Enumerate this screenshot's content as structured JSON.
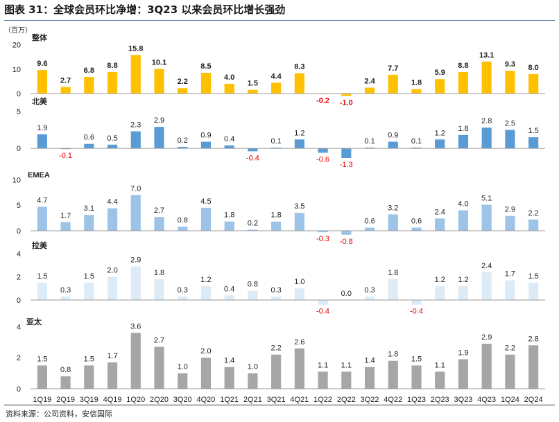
{
  "title": "图表 31：全球会员环比净增：3Q23 以来会员环比增长强劲",
  "source": "资料来源：公司资料，安信国际",
  "colors": {
    "negative_label": "#e00000",
    "title_rule": "#5b7fb0",
    "axis": "#999999"
  },
  "chart_data": [
    {
      "type": "bar",
      "label": "整体",
      "unit": "（百万）",
      "color": "#ffc000",
      "yticks": [
        0,
        10,
        20
      ],
      "ylim": [
        -2,
        23
      ],
      "categories": [
        "1Q19",
        "2Q19",
        "3Q19",
        "4Q19",
        "1Q20",
        "2Q20",
        "3Q20",
        "4Q20",
        "1Q21",
        "2Q21",
        "3Q21",
        "4Q21",
        "1Q22",
        "2Q22",
        "3Q22",
        "4Q22",
        "1Q23",
        "2Q23",
        "3Q23",
        "4Q23",
        "1Q24",
        "2Q24"
      ],
      "values": [
        9.6,
        2.7,
        6.8,
        8.8,
        15.8,
        10.1,
        2.2,
        8.5,
        4.0,
        1.5,
        4.4,
        8.3,
        -0.2,
        -1.0,
        2.4,
        7.7,
        1.8,
        5.9,
        8.8,
        13.1,
        9.3,
        8.0
      ],
      "data_labels": [
        "9.6",
        "2.7",
        "6.8",
        "8.8",
        "15.8",
        "10.1",
        "2.2",
        "8.5",
        "4.0",
        "1.5",
        "4.4",
        "8.3",
        "-0.2",
        "-1.0",
        "2.4",
        "7.7",
        "1.8",
        "5.9",
        "8.8",
        "13.1",
        "9.3",
        "8.0"
      ]
    },
    {
      "type": "bar",
      "label": "北美",
      "color": "#5b9bd5",
      "yticks": [
        0,
        5
      ],
      "ylim": [
        -2.8,
        6
      ],
      "categories": [
        "1Q19",
        "2Q19",
        "3Q19",
        "4Q19",
        "1Q20",
        "2Q20",
        "3Q20",
        "4Q20",
        "1Q21",
        "2Q21",
        "3Q21",
        "4Q21",
        "1Q22",
        "2Q22",
        "3Q22",
        "4Q22",
        "1Q23",
        "2Q23",
        "3Q23",
        "4Q23",
        "1Q24",
        "2Q24"
      ],
      "values": [
        1.9,
        -0.1,
        0.6,
        0.5,
        2.3,
        2.9,
        0.2,
        0.9,
        0.4,
        -0.4,
        0.1,
        1.2,
        -0.6,
        -1.3,
        0.1,
        0.9,
        0.1,
        1.2,
        1.8,
        2.8,
        2.5,
        1.5
      ],
      "data_labels": [
        "1.9",
        "-0.1",
        "0.6",
        "0.5",
        "2.3",
        "2.9",
        "0.2",
        "0.9",
        "0.4",
        "-0.4",
        "0.1",
        "1.2",
        "-0.6",
        "-1.3",
        "0.1",
        "0.9",
        "0.1",
        "1.2",
        "1.8",
        "2.8",
        "2.5",
        "1.5"
      ]
    },
    {
      "type": "bar",
      "label": "EMEA",
      "color": "#9dc3e6",
      "yticks": [
        0,
        5,
        10
      ],
      "ylim": [
        -1.5,
        11
      ],
      "categories": [
        "1Q19",
        "2Q19",
        "3Q19",
        "4Q19",
        "1Q20",
        "2Q20",
        "3Q20",
        "4Q20",
        "1Q21",
        "2Q21",
        "3Q21",
        "4Q21",
        "1Q22",
        "2Q22",
        "3Q22",
        "4Q22",
        "1Q23",
        "2Q23",
        "3Q23",
        "4Q23",
        "1Q24",
        "2Q24"
      ],
      "values": [
        4.7,
        1.7,
        3.1,
        4.4,
        7.0,
        2.7,
        0.8,
        4.5,
        1.8,
        0.2,
        1.8,
        3.5,
        -0.3,
        -0.8,
        0.6,
        3.2,
        0.6,
        2.4,
        4.0,
        5.1,
        2.9,
        2.2
      ],
      "data_labels": [
        "4.7",
        "1.7",
        "3.1",
        "4.4",
        "7.0",
        "2.7",
        "0.8",
        "4.5",
        "1.8",
        "0.2",
        "1.8",
        "3.5",
        "-0.3",
        "-0.8",
        "0.6",
        "3.2",
        "0.6",
        "2.4",
        "4.0",
        "5.1",
        "2.9",
        "2.2"
      ]
    },
    {
      "type": "bar",
      "label": "拉美",
      "color": "#ddebf7",
      "yticks": [
        0,
        2,
        4
      ],
      "ylim": [
        -0.9,
        4.6
      ],
      "categories": [
        "1Q19",
        "2Q19",
        "3Q19",
        "4Q19",
        "1Q20",
        "2Q20",
        "3Q20",
        "4Q20",
        "1Q21",
        "2Q21",
        "3Q21",
        "4Q21",
        "1Q22",
        "2Q22",
        "3Q22",
        "4Q22",
        "1Q23",
        "2Q23",
        "3Q23",
        "4Q23",
        "1Q24",
        "2Q24"
      ],
      "values": [
        1.5,
        0.3,
        1.5,
        2.0,
        2.9,
        1.8,
        0.3,
        1.2,
        0.4,
        0.8,
        0.3,
        1.0,
        -0.4,
        0.0,
        0.3,
        1.8,
        -0.4,
        1.2,
        1.2,
        2.4,
        1.7,
        1.5
      ],
      "data_labels": [
        "1.5",
        "0.3",
        "1.5",
        "2.0",
        "2.9",
        "1.8",
        "0.3",
        "1.2",
        "0.4",
        "0.8",
        "0.3",
        "1.0",
        "-0.4",
        "0.0",
        "0.3",
        "1.8",
        "-0.4",
        "1.2",
        "1.2",
        "2.4",
        "1.7",
        "1.5"
      ]
    },
    {
      "type": "bar",
      "label": "亚太",
      "color": "#a6a6a6",
      "yticks": [
        0,
        2,
        4
      ],
      "ylim": [
        0,
        4.6
      ],
      "categories": [
        "1Q19",
        "2Q19",
        "3Q19",
        "4Q19",
        "1Q20",
        "2Q20",
        "3Q20",
        "4Q20",
        "1Q21",
        "2Q21",
        "3Q21",
        "4Q21",
        "1Q22",
        "2Q22",
        "3Q22",
        "4Q22",
        "1Q23",
        "2Q23",
        "3Q23",
        "4Q23",
        "1Q24",
        "2Q24"
      ],
      "values": [
        1.5,
        0.8,
        1.5,
        1.7,
        3.6,
        2.7,
        1.0,
        2.0,
        1.4,
        1.0,
        2.2,
        2.6,
        1.1,
        1.1,
        1.4,
        1.8,
        1.5,
        1.1,
        1.9,
        2.9,
        2.2,
        2.8
      ],
      "data_labels": [
        "1.5",
        "0.8",
        "1.5",
        "1.7",
        "3.6",
        "2.7",
        "1.0",
        "2.0",
        "1.4",
        "1.0",
        "2.2",
        "2.6",
        "1.1",
        "1.1",
        "1.4",
        "1.8",
        "1.5",
        "1.1",
        "1.9",
        "2.9",
        "2.2",
        "2.8"
      ],
      "show_x_labels": true
    }
  ]
}
